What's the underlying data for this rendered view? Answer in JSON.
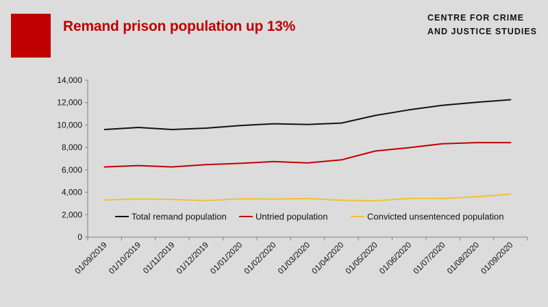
{
  "header": {
    "title": "Remand prison population up 13%",
    "org_line1": "CENTRE FOR CRIME",
    "org_line2": "AND JUSTICE STUDIES"
  },
  "colors": {
    "accent": "#c00000",
    "title": "#c00000",
    "total": "#111111",
    "untried": "#c00000",
    "convicted": "#f2c230",
    "axis": "#7f7f7f"
  },
  "chart_data": {
    "type": "line",
    "title": "Remand prison population up 13%",
    "x": [
      "01/09/2019",
      "01/10/2019",
      "01/11/2019",
      "01/12/2019",
      "01/01/2020",
      "01/02/2020",
      "01/03/2020",
      "01/04/2020",
      "01/05/2020",
      "01/06/2020",
      "01/07/2020",
      "01/08/2020",
      "01/09/2020"
    ],
    "series": [
      {
        "name": "Total remand population",
        "color_key": "total",
        "values": [
          9600,
          9780,
          9600,
          9720,
          9950,
          10110,
          10050,
          10170,
          10850,
          11350,
          11760,
          12030,
          12260
        ]
      },
      {
        "name": "Untried population",
        "color_key": "untried",
        "values": [
          6260,
          6380,
          6260,
          6460,
          6580,
          6740,
          6620,
          6890,
          7680,
          7980,
          8330,
          8430,
          8430
        ]
      },
      {
        "name": "Convicted unsentenced population",
        "color_key": "convicted",
        "values": [
          3320,
          3400,
          3360,
          3260,
          3420,
          3390,
          3440,
          3280,
          3240,
          3450,
          3440,
          3600,
          3830
        ]
      }
    ],
    "yticks": [
      "0",
      "2,000",
      "4,000",
      "6,000",
      "8,000",
      "10,000",
      "12,000",
      "14,000"
    ],
    "ylim": [
      0,
      14000
    ],
    "grid": false,
    "legend_position": "bottom-inside"
  }
}
